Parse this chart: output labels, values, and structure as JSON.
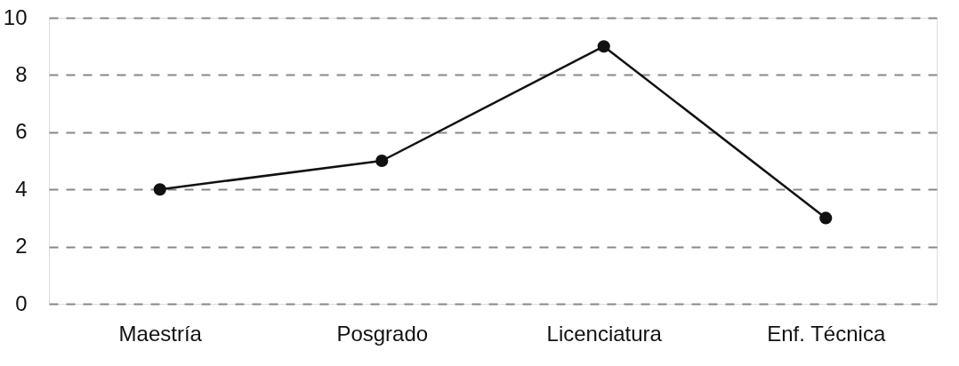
{
  "chart_data": {
    "type": "line",
    "categories": [
      "Maestría",
      "Posgrado",
      "Licenciatura",
      "Enf. Técnica"
    ],
    "series": [
      {
        "color": "#111111",
        "values": [
          4,
          5,
          9,
          3
        ]
      }
    ],
    "ylim": [
      0,
      10
    ],
    "yticks": [
      0,
      2,
      4,
      6,
      8,
      10
    ],
    "grid": "y",
    "marker": "circle",
    "line_style": "solid"
  }
}
